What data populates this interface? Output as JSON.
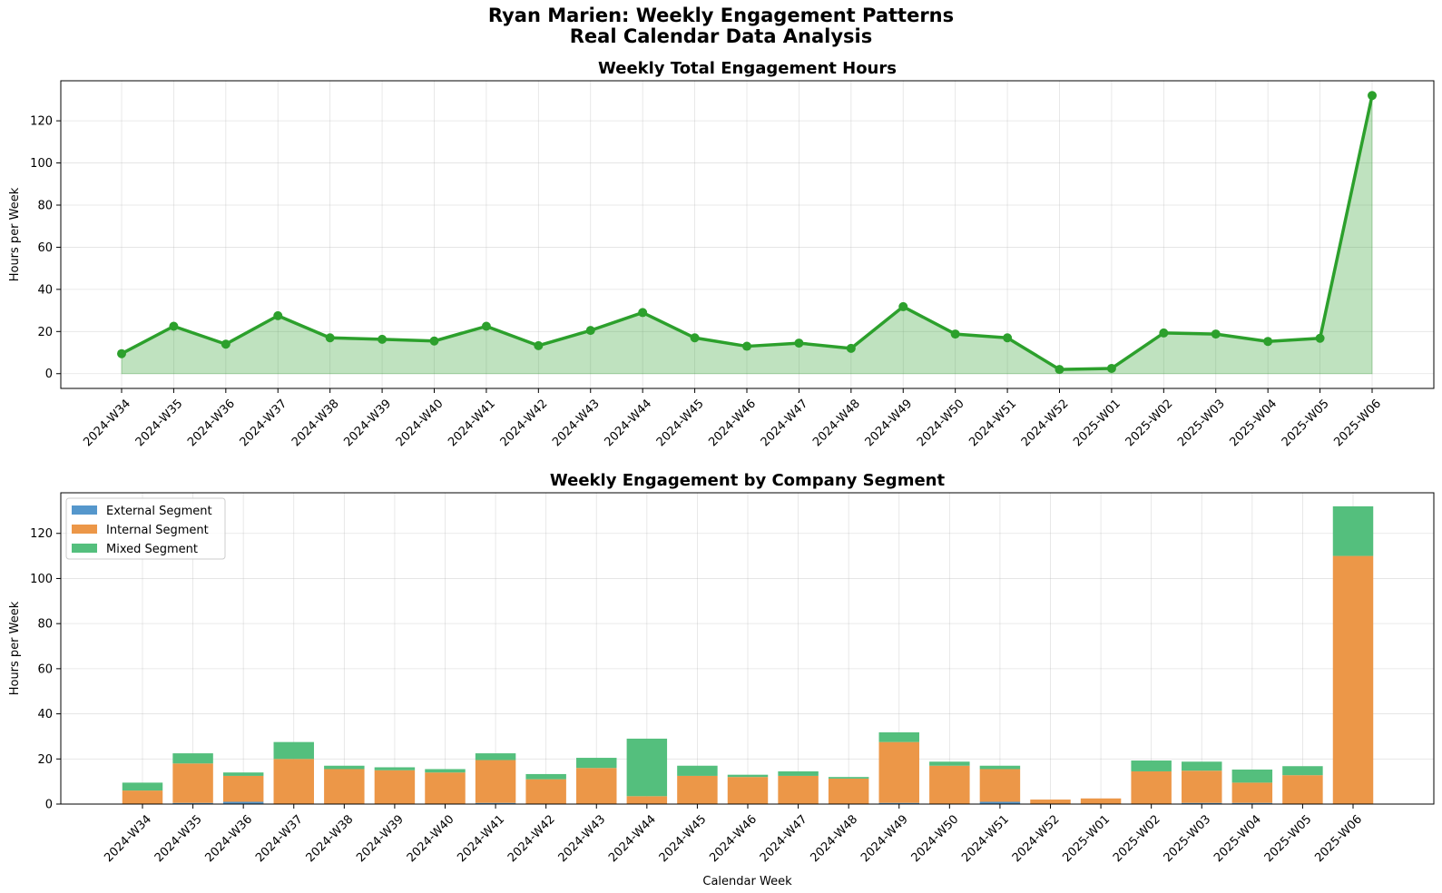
{
  "figure": {
    "title_line1": "Ryan Marien: Weekly Engagement Patterns",
    "title_line2": "Real Calendar Data Analysis"
  },
  "colors": {
    "total_line": "#2ca02c",
    "total_fill": "#c0e4c0",
    "external": "#5597cc",
    "internal": "#ec9748",
    "mixed": "#54bf7d"
  },
  "chart_data": [
    {
      "type": "area",
      "title": "Weekly Total Engagement Hours",
      "xlabel": "",
      "ylabel": "Hours per Week",
      "ylim": [
        -7,
        139
      ],
      "yticks": [
        0,
        20,
        40,
        60,
        80,
        100,
        120
      ],
      "grid": true,
      "categories": [
        "2024-W34",
        "2024-W35",
        "2024-W36",
        "2024-W37",
        "2024-W38",
        "2024-W39",
        "2024-W40",
        "2024-W41",
        "2024-W42",
        "2024-W43",
        "2024-W44",
        "2024-W45",
        "2024-W46",
        "2024-W47",
        "2024-W48",
        "2024-W49",
        "2024-W50",
        "2024-W51",
        "2024-W52",
        "2025-W01",
        "2025-W02",
        "2025-W03",
        "2025-W04",
        "2025-W05",
        "2025-W06"
      ],
      "values": [
        9.5,
        22.5,
        14,
        27.5,
        17,
        16.3,
        15.5,
        22.5,
        13.3,
        20.5,
        29,
        17,
        13,
        14.5,
        12,
        31.8,
        18.8,
        17,
        2,
        2.5,
        19.3,
        18.8,
        15.3,
        16.8,
        132
      ]
    },
    {
      "type": "bar",
      "stacked": true,
      "title": "Weekly Engagement by Company Segment",
      "xlabel": "Calendar Week",
      "ylabel": "Hours per Week",
      "ylim": [
        0,
        138
      ],
      "yticks": [
        0,
        20,
        40,
        60,
        80,
        100,
        120
      ],
      "grid": true,
      "legend": "top-left",
      "categories": [
        "2024-W34",
        "2024-W35",
        "2024-W36",
        "2024-W37",
        "2024-W38",
        "2024-W39",
        "2024-W40",
        "2024-W41",
        "2024-W42",
        "2024-W43",
        "2024-W44",
        "2024-W45",
        "2024-W46",
        "2024-W47",
        "2024-W48",
        "2024-W49",
        "2024-W50",
        "2024-W51",
        "2024-W52",
        "2025-W01",
        "2025-W02",
        "2025-W03",
        "2025-W04",
        "2025-W05",
        "2025-W06"
      ],
      "series": [
        {
          "name": "External Segment",
          "values": [
            0,
            0.5,
            1,
            0,
            0,
            0,
            0,
            0.5,
            0,
            0,
            0,
            0,
            0,
            0,
            0,
            0.5,
            0,
            1,
            0,
            0,
            0,
            0.5,
            0.5,
            0,
            0
          ]
        },
        {
          "name": "Internal Segment",
          "values": [
            6,
            17.5,
            11.5,
            20,
            15.5,
            15,
            14,
            19,
            11,
            16,
            3.5,
            12.5,
            12,
            12.5,
            11.3,
            27,
            17,
            14.5,
            2,
            2.5,
            14.5,
            14.3,
            9,
            12.8,
            110
          ]
        },
        {
          "name": "Mixed Segment",
          "values": [
            3.5,
            4.5,
            1.5,
            7.5,
            1.5,
            1.3,
            1.5,
            3,
            2.3,
            4.5,
            25.5,
            4.5,
            1,
            2,
            0.7,
            4.3,
            1.8,
            1.5,
            0,
            0,
            4.8,
            4,
            5.8,
            4,
            22
          ]
        }
      ]
    }
  ]
}
